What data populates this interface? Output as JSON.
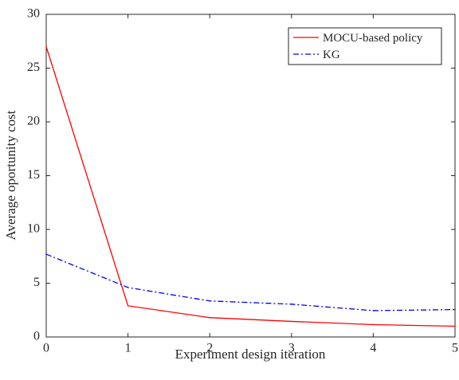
{
  "chart_data": {
    "type": "line",
    "title": "",
    "xlabel": "Experiment design iteration",
    "ylabel": "Average oportunity cost",
    "xlim": [
      0,
      5
    ],
    "ylim": [
      0,
      30
    ],
    "xticks": [
      0,
      1,
      2,
      3,
      4,
      5
    ],
    "yticks": [
      0,
      5,
      10,
      15,
      20,
      25,
      30
    ],
    "grid": false,
    "legend_position": "top-right",
    "x": [
      0,
      1,
      2,
      3,
      4,
      5
    ],
    "series": [
      {
        "name": "MOCU-based policy",
        "values": [
          27.0,
          2.9,
          1.8,
          1.45,
          1.15,
          1.0
        ],
        "color": "#ff0000",
        "line_style": "solid"
      },
      {
        "name": "KG",
        "values": [
          7.7,
          4.6,
          3.35,
          3.05,
          2.45,
          2.55
        ],
        "color": "#0000ff",
        "line_style": "dash-dot"
      }
    ]
  }
}
